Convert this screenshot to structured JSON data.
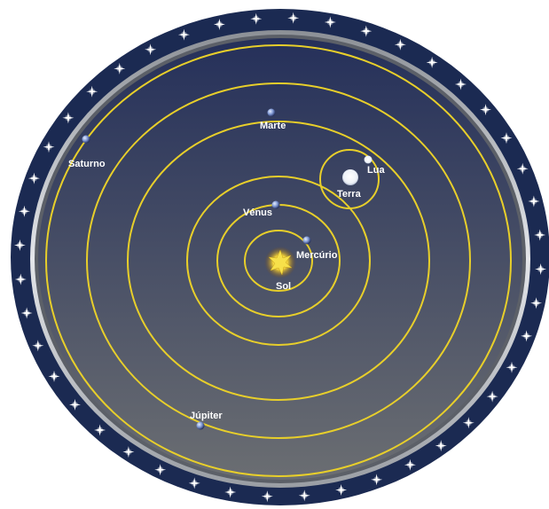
{
  "diagram": {
    "colors": {
      "outer_ring": "#1b2a52",
      "star": "#ffffff",
      "bezel_light": "#d9dce0",
      "bezel_dark": "#6f737a",
      "disc_top": "#25305a",
      "disc_bottom": "#6b6e72",
      "orbit": "#e8cf2a",
      "planet": "#8fa8e0",
      "sun": "#f2d23a"
    },
    "bodies": {
      "sun": {
        "label": "Sol"
      },
      "mercury": {
        "label": "Mercúrio"
      },
      "venus": {
        "label": "Vénus"
      },
      "earth": {
        "label": "Terra"
      },
      "moon": {
        "label": "Lua"
      },
      "mars": {
        "label": "Marte"
      },
      "jupiter": {
        "label": "Júpiter"
      },
      "saturn": {
        "label": "Saturno"
      }
    }
  }
}
